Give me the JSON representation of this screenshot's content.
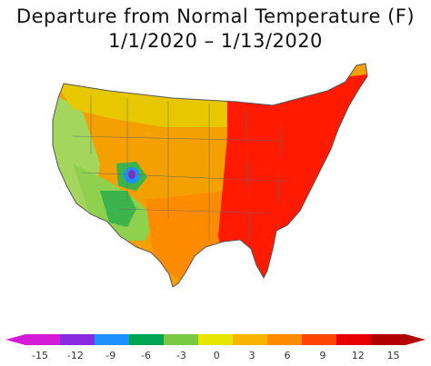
{
  "title_line1": "Departure from Normal Temperature (F)",
  "title_line2": "1/1/2020 – 1/13/2020",
  "legend": {
    "ticks": [
      "-15",
      "-12",
      "-9",
      "-6",
      "-3",
      "0",
      "3",
      "6",
      "9",
      "12",
      "15"
    ],
    "colors": [
      "#d51ad5",
      "#8a2be2",
      "#1e90ff",
      "#00a651",
      "#7ac943",
      "#e6e600",
      "#f7b500",
      "#ff8c00",
      "#ff4500",
      "#e60000",
      "#b30000"
    ]
  },
  "map_colors": {
    "warm_east": "#ff1a00",
    "warm_mid": "#ff7a00",
    "near_normal": "#f0c000",
    "west_warm": "#f4a000",
    "cool_west": "#8fd14f",
    "cooler": "#3cb44b",
    "coldest": "#7b2fbf",
    "coast_cool": "#a4d65e"
  }
}
